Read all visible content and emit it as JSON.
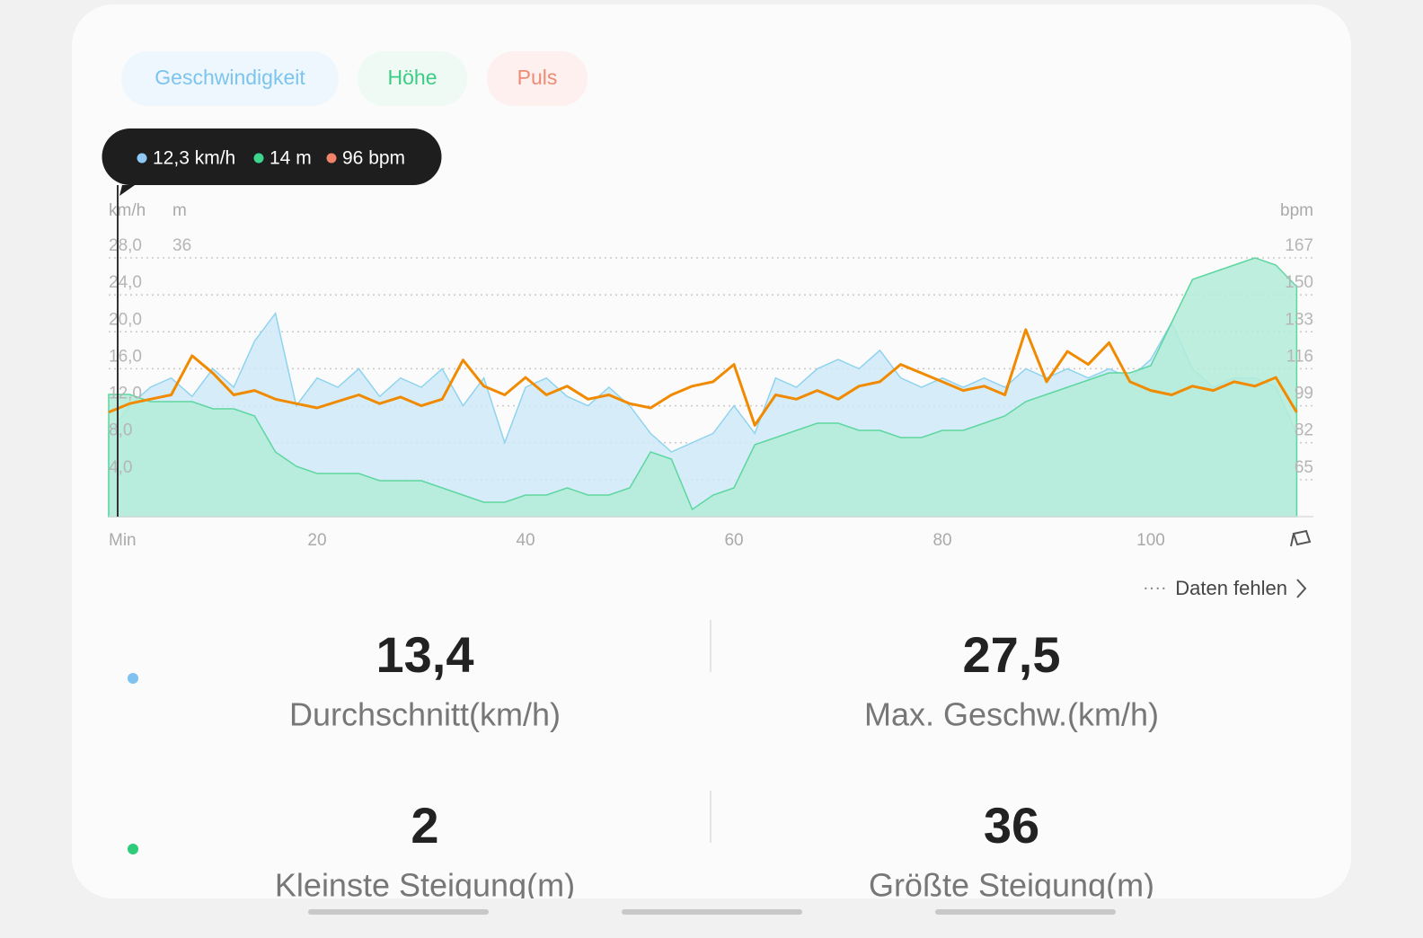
{
  "tabs": [
    "Geschwindigkeit",
    "Höhe",
    "Puls"
  ],
  "tooltip": [
    "12,3 km/h",
    "14 m",
    "96 bpm"
  ],
  "chart_data": {
    "type": "line",
    "y_unit": "km/h",
    "y3_unit": "m",
    "y2_unit": "bpm",
    "xlabel": "Min",
    "x": [
      0,
      2,
      4,
      6,
      8,
      10,
      12,
      14,
      16,
      18,
      20,
      22,
      24,
      26,
      28,
      30,
      32,
      34,
      36,
      38,
      40,
      42,
      44,
      46,
      48,
      50,
      52,
      54,
      56,
      58,
      60,
      62,
      64,
      66,
      68,
      70,
      72,
      74,
      76,
      78,
      80,
      82,
      84,
      86,
      88,
      90,
      92,
      94,
      96,
      98,
      100,
      102,
      104,
      106,
      108,
      110,
      112,
      114
    ],
    "xlim": [
      0,
      115.6
    ],
    "xticks": [
      20,
      40,
      60,
      80,
      100
    ],
    "ylim": [
      0,
      28
    ],
    "yticks": [
      {
        "value": 4,
        "label": "4,0"
      },
      {
        "value": 8,
        "label": "8,0"
      },
      {
        "value": 12,
        "label": "12,0"
      },
      {
        "value": 16,
        "label": "16,0"
      },
      {
        "value": 20,
        "label": "20,0"
      },
      {
        "value": 24,
        "label": "24,0"
      },
      {
        "value": 28,
        "label": "28,0"
      }
    ],
    "y3lim": [
      0,
      36
    ],
    "y3ticks": [
      36
    ],
    "y2lim": [
      48,
      167
    ],
    "y2ticks": [
      65,
      82,
      99,
      116,
      133,
      150,
      167
    ],
    "grid": true,
    "series": [
      {
        "name": "Geschwindigkeit",
        "color": "#8fd3ee",
        "fill": "#cfeaf8",
        "values": [
          9,
          12,
          14,
          15,
          13,
          16,
          14,
          19,
          22,
          12,
          15,
          14,
          16,
          13,
          15,
          14,
          16,
          12,
          15,
          8,
          14,
          15,
          13,
          12,
          14,
          12,
          9,
          7,
          8,
          9,
          12,
          9,
          15,
          14,
          16,
          17,
          16,
          18,
          15,
          14,
          15,
          14,
          15,
          14,
          16,
          15,
          16,
          15,
          16,
          15,
          17,
          21,
          16,
          14,
          15,
          15,
          14,
          9
        ]
      },
      {
        "name": "Höhe",
        "color": "#5dd6a0",
        "fill": "#b3ecd8",
        "axis": "y3",
        "values": [
          17,
          17,
          16,
          16,
          16,
          15,
          15,
          14,
          9,
          7,
          6,
          6,
          6,
          5,
          5,
          5,
          4,
          3,
          2,
          2,
          3,
          3,
          4,
          3,
          3,
          4,
          9,
          8,
          1,
          3,
          4,
          10,
          11,
          12,
          13,
          13,
          12,
          12,
          11,
          11,
          12,
          12,
          13,
          14,
          16,
          17,
          18,
          19,
          20,
          20,
          21,
          27,
          33,
          34,
          35,
          36,
          35,
          32
        ]
      },
      {
        "name": "Puls",
        "color": "#f08a00",
        "axis": "y2",
        "values": [
          96,
          100,
          102,
          104,
          122,
          114,
          104,
          106,
          102,
          100,
          98,
          101,
          104,
          100,
          103,
          99,
          102,
          120,
          108,
          104,
          112,
          104,
          108,
          102,
          104,
          100,
          98,
          104,
          108,
          110,
          118,
          90,
          104,
          102,
          106,
          102,
          108,
          110,
          118,
          114,
          110,
          106,
          108,
          104,
          134,
          110,
          124,
          118,
          128,
          110,
          106,
          104,
          108,
          106,
          110,
          108,
          112,
          96
        ]
      }
    ]
  },
  "missing_note": "Daten fehlen",
  "stats": [
    {
      "value": "13,4",
      "label": "Durchschnitt(km/h)"
    },
    {
      "value": "27,5",
      "label": "Max. Geschw.(km/h)"
    },
    {
      "value": "2",
      "label": "Kleinste Steigung(m)"
    },
    {
      "value": "36",
      "label": "Größte Steigung(m)"
    }
  ]
}
